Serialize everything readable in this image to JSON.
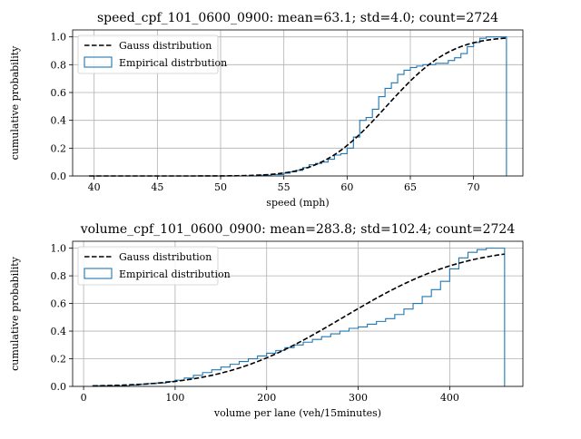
{
  "chart_data": [
    {
      "type": "line",
      "title": "speed_cpf_101_0600_0900: mean=63.1; std=4.0; count=2724",
      "xlabel": "speed (mph)",
      "ylabel": "cumulative probability",
      "xlim": [
        38.3,
        73.9
      ],
      "ylim": [
        0,
        1.05
      ],
      "xticks": [
        40,
        45,
        50,
        55,
        60,
        65,
        70
      ],
      "yticks": [
        0.0,
        0.2,
        0.4,
        0.6,
        0.8,
        1.0
      ],
      "grid": true,
      "legend_position": "top-left",
      "gauss": {
        "label": "Gauss distribution",
        "mean": 63.1,
        "std": 4.0,
        "x_range": [
          39.6,
          72.6
        ],
        "color": "#000000"
      },
      "empirical": {
        "label": "Empirical distrbution",
        "color": "#1f77b4",
        "edges": [
          39.6,
          53.0,
          54.0,
          55.0,
          55.5,
          56.0,
          56.5,
          57.0,
          57.5,
          58.0,
          58.5,
          59.0,
          59.5,
          60.0,
          60.5,
          61.0,
          61.5,
          62.0,
          62.5,
          63.0,
          63.5,
          64.0,
          64.5,
          65.0,
          65.5,
          66.0,
          67.0,
          68.0,
          68.5,
          69.0,
          69.5,
          70.0,
          70.5,
          71.0,
          72.6
        ],
        "cum": [
          0.0,
          0.005,
          0.01,
          0.02,
          0.03,
          0.04,
          0.06,
          0.08,
          0.09,
          0.1,
          0.12,
          0.15,
          0.16,
          0.2,
          0.28,
          0.4,
          0.42,
          0.48,
          0.57,
          0.63,
          0.67,
          0.73,
          0.76,
          0.78,
          0.79,
          0.8,
          0.81,
          0.83,
          0.85,
          0.88,
          0.93,
          0.96,
          0.99,
          1.0
        ]
      }
    },
    {
      "type": "line",
      "title": "volume_cpf_101_0600_0900: mean=283.8; std=102.4; count=2724",
      "xlabel": "volume per lane (veh/15minutes)",
      "ylabel": "cumulative probability",
      "xlim": [
        -12,
        480
      ],
      "ylim": [
        0,
        1.05
      ],
      "xticks": [
        0,
        100,
        200,
        300,
        400
      ],
      "yticks": [
        0.0,
        0.2,
        0.4,
        0.6,
        0.8,
        1.0
      ],
      "grid": true,
      "legend_position": "top-left",
      "gauss": {
        "label": "Gauss distribution",
        "mean": 283.8,
        "std": 102.4,
        "x_range": [
          10,
          460
        ],
        "color": "#000000"
      },
      "empirical": {
        "label": "Empirical distribution",
        "color": "#1f77b4",
        "edges": [
          10,
          50,
          60,
          70,
          80,
          90,
          100,
          110,
          120,
          130,
          140,
          150,
          160,
          170,
          180,
          190,
          200,
          210,
          220,
          230,
          240,
          250,
          260,
          270,
          280,
          290,
          300,
          310,
          320,
          330,
          340,
          350,
          360,
          370,
          380,
          390,
          400,
          410,
          420,
          430,
          440,
          460
        ],
        "cum": [
          0.005,
          0.01,
          0.015,
          0.02,
          0.025,
          0.035,
          0.045,
          0.06,
          0.08,
          0.1,
          0.12,
          0.14,
          0.16,
          0.18,
          0.2,
          0.22,
          0.24,
          0.26,
          0.28,
          0.3,
          0.32,
          0.34,
          0.36,
          0.38,
          0.4,
          0.42,
          0.43,
          0.45,
          0.47,
          0.49,
          0.52,
          0.56,
          0.6,
          0.65,
          0.7,
          0.76,
          0.85,
          0.93,
          0.97,
          0.99,
          1.0
        ]
      }
    }
  ]
}
